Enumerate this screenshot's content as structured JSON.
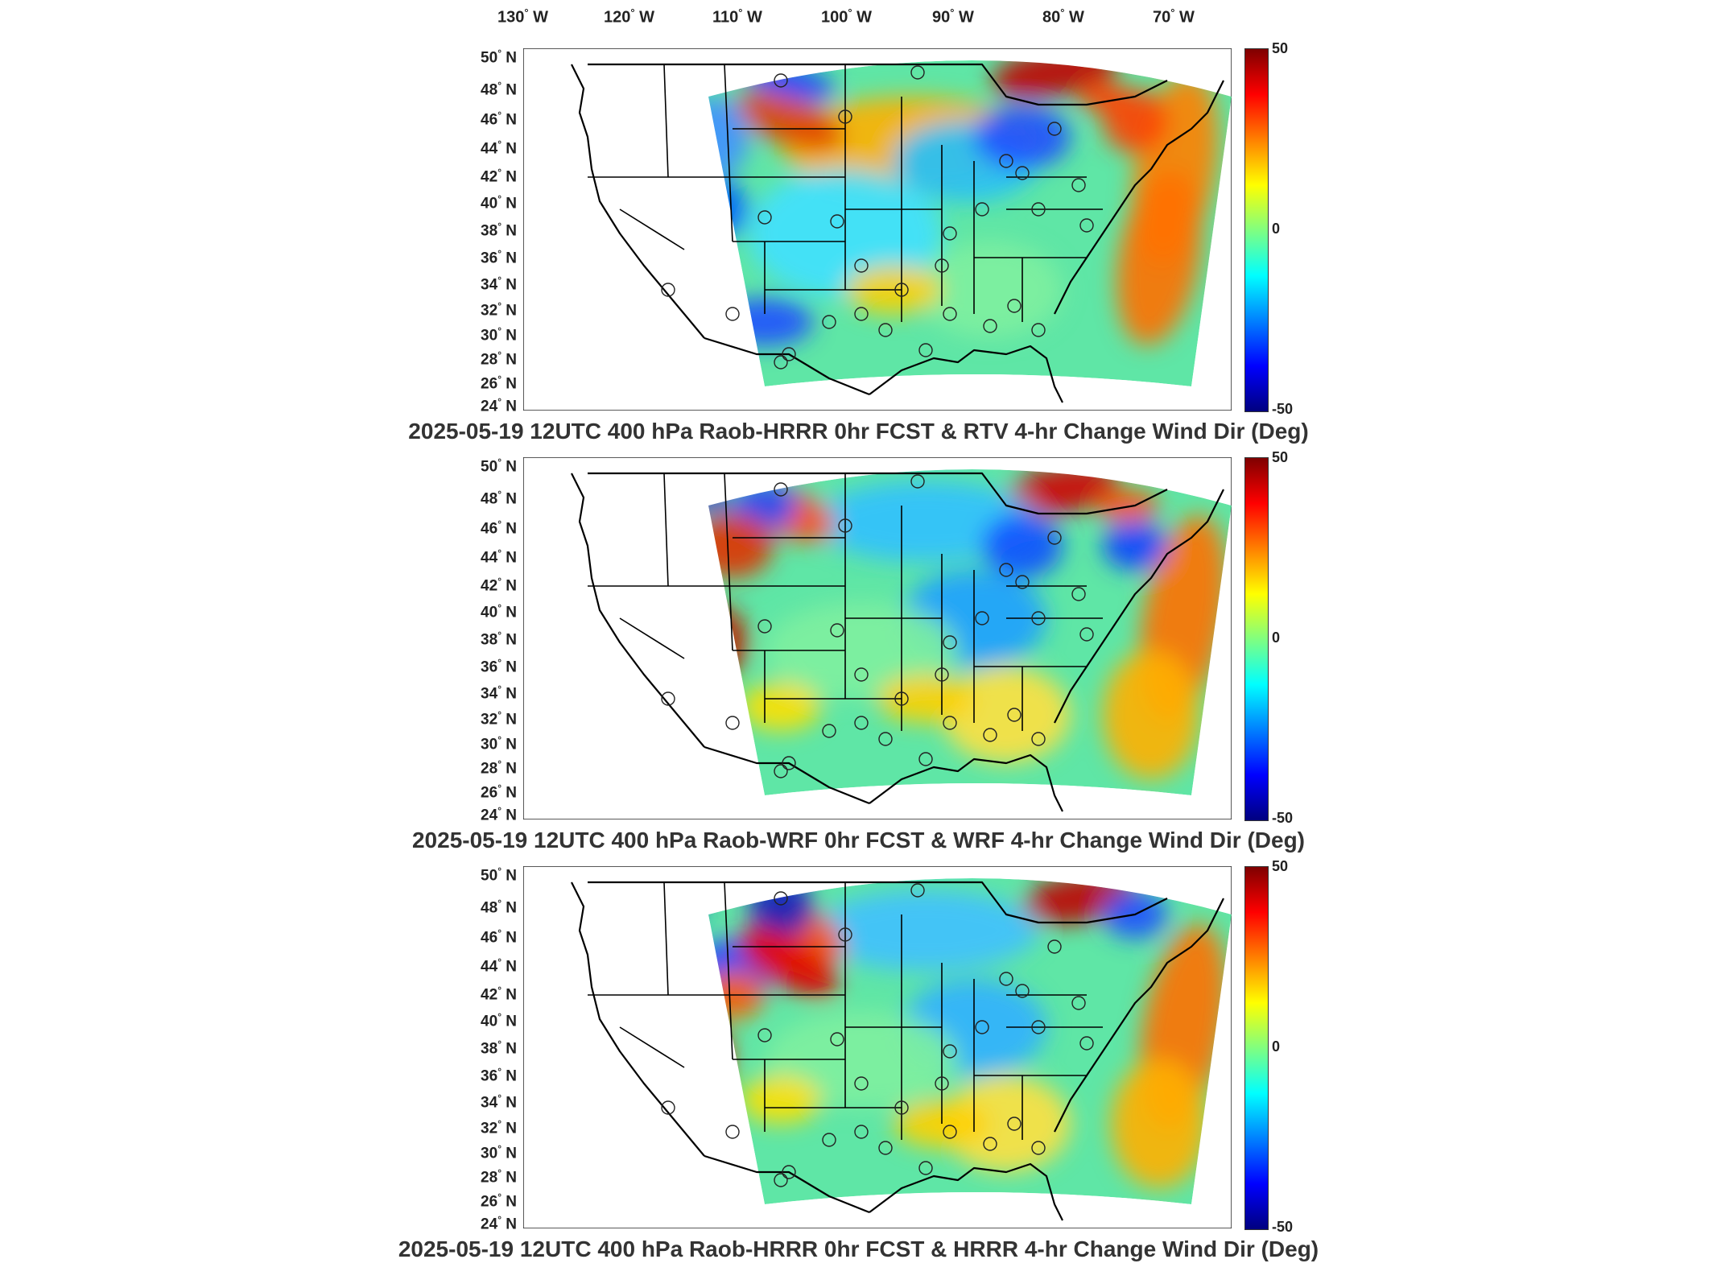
{
  "lon_labels": [
    {
      "deg": "130",
      "hem": "W"
    },
    {
      "deg": "120",
      "hem": "W"
    },
    {
      "deg": "110",
      "hem": "W"
    },
    {
      "deg": "100",
      "hem": "W"
    },
    {
      "deg": "90",
      "hem": "W"
    },
    {
      "deg": "80",
      "hem": "W"
    },
    {
      "deg": "70",
      "hem": "W"
    }
  ],
  "lat_labels": [
    {
      "deg": "50",
      "hem": "N"
    },
    {
      "deg": "48",
      "hem": "N"
    },
    {
      "deg": "46",
      "hem": "N"
    },
    {
      "deg": "44",
      "hem": "N"
    },
    {
      "deg": "42",
      "hem": "N"
    },
    {
      "deg": "40",
      "hem": "N"
    },
    {
      "deg": "38",
      "hem": "N"
    },
    {
      "deg": "36",
      "hem": "N"
    },
    {
      "deg": "34",
      "hem": "N"
    },
    {
      "deg": "32",
      "hem": "N"
    },
    {
      "deg": "30",
      "hem": "N"
    },
    {
      "deg": "28",
      "hem": "N"
    },
    {
      "deg": "26",
      "hem": "N"
    },
    {
      "deg": "24",
      "hem": "N"
    }
  ],
  "colorbar": {
    "min": -50,
    "max": 50,
    "tick_labels": [
      "50",
      "0",
      "-50"
    ],
    "colormap": "jet"
  },
  "panels": [
    {
      "title": "2025-05-19 12UTC 400 hPa Raob-HRRR 0hr FCST & RTV 4-hr Change Wind Dir (Deg)"
    },
    {
      "title": "2025-05-19 12UTC 400 hPa Raob-WRF 0hr FCST & WRF 4-hr Change Wind Dir (Deg)"
    },
    {
      "title": "2025-05-19 12UTC 400 hPa Raob-HRRR 0hr FCST & HRRR 4-hr Change Wind Dir (Deg)"
    }
  ],
  "colors": {
    "field_base": "#5fe6a6",
    "coast": "#000000",
    "ocean": "#ffffff"
  }
}
